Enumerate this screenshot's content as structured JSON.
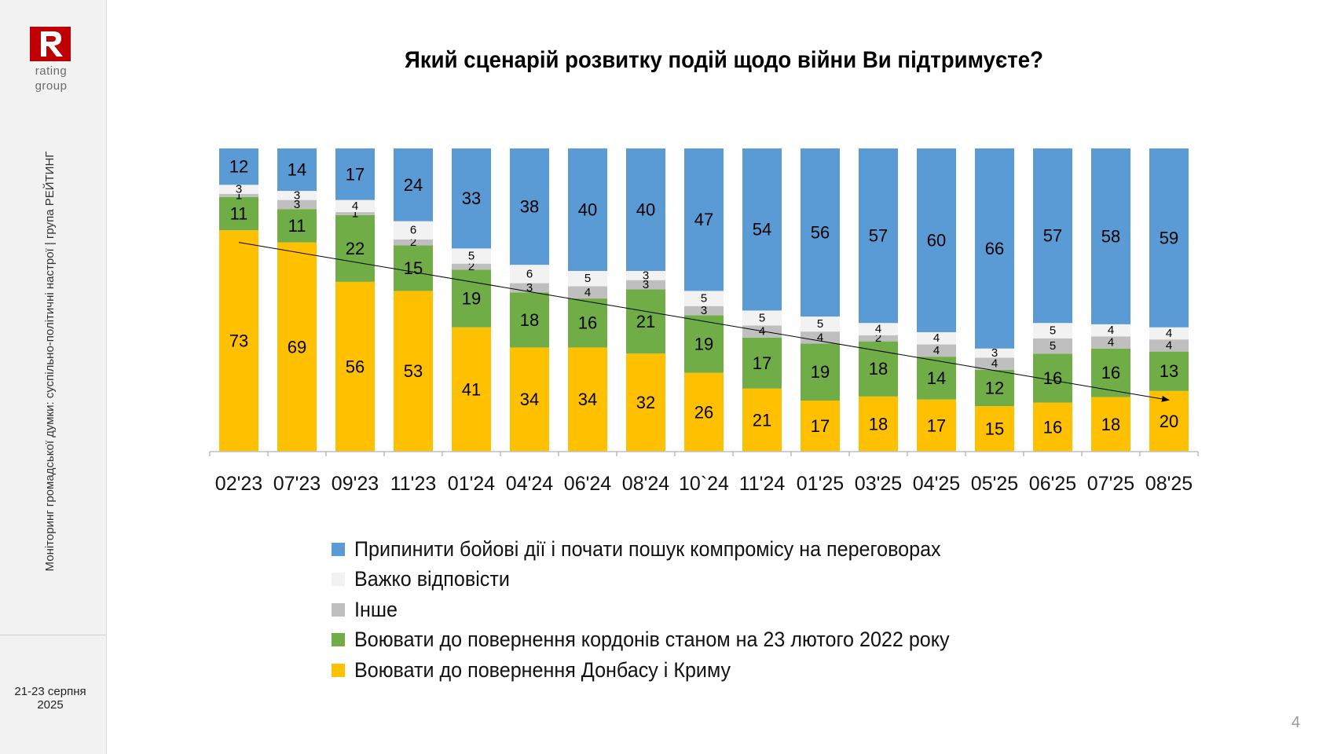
{
  "logo": {
    "letter": "R",
    "line1": "rating",
    "line2": "group",
    "color": "#c00000"
  },
  "sidebar": {
    "vertical_text": "Моніторинг громадської думки: суспільно-політичні настрої | група РЕЙТИНГ",
    "date_line1": "21-23 серпня",
    "date_line2": "2025"
  },
  "page_number": "4",
  "chart_data": {
    "type": "bar",
    "stacked": true,
    "orientation": "vertical",
    "title": "Який сценарій розвитку подій щодо війни Ви підтримуєте?",
    "categories": [
      "02'23",
      "07'23",
      "09'23",
      "11'23",
      "01'24",
      "04'24",
      "06'24",
      "08'24",
      "10`24",
      "11'24",
      "01'25",
      "03'25",
      "04'25",
      "05'25",
      "06'25",
      "07'25",
      "08'25"
    ],
    "ylim": [
      0,
      100
    ],
    "grid": false,
    "legend_position": "bottom",
    "trend_arrow": {
      "from_category": "02'23",
      "to_category": "08'25",
      "from_value": 69,
      "to_value": 17
    },
    "series": [
      {
        "name": "Воювати до повернення Донбасу і Криму",
        "color": "#ffc000",
        "label_color": "#000000",
        "values": [
          73,
          69,
          56,
          53,
          41,
          34,
          34,
          32,
          26,
          21,
          17,
          18,
          17,
          15,
          16,
          18,
          20
        ]
      },
      {
        "name": "Воювати до повернення кордонів станом на 23 лютого 2022 року",
        "color": "#70ad47",
        "label_color": "#000000",
        "values": [
          11,
          11,
          22,
          15,
          19,
          18,
          16,
          21,
          19,
          17,
          19,
          18,
          14,
          12,
          16,
          16,
          13
        ]
      },
      {
        "name": "Інше",
        "color": "#bfbfbf",
        "label_color": "#000000",
        "values": [
          1,
          3,
          1,
          2,
          2,
          3,
          4,
          3,
          3,
          4,
          4,
          2,
          4,
          4,
          5,
          4,
          4
        ]
      },
      {
        "name": "Важко відповісти",
        "color": "#f2f2f2",
        "label_color": "#000000",
        "values": [
          3,
          3,
          4,
          6,
          5,
          6,
          5,
          3,
          5,
          5,
          5,
          4,
          4,
          3,
          5,
          4,
          4
        ]
      },
      {
        "name": "Припинити бойові дії і почати пошук компромісу на переговорах",
        "color": "#5b9bd5",
        "label_color": "#000000",
        "values": [
          12,
          14,
          17,
          24,
          33,
          38,
          40,
          40,
          47,
          54,
          56,
          57,
          60,
          66,
          57,
          58,
          59
        ]
      }
    ],
    "legend_order": [
      4,
      3,
      2,
      1,
      0
    ]
  }
}
